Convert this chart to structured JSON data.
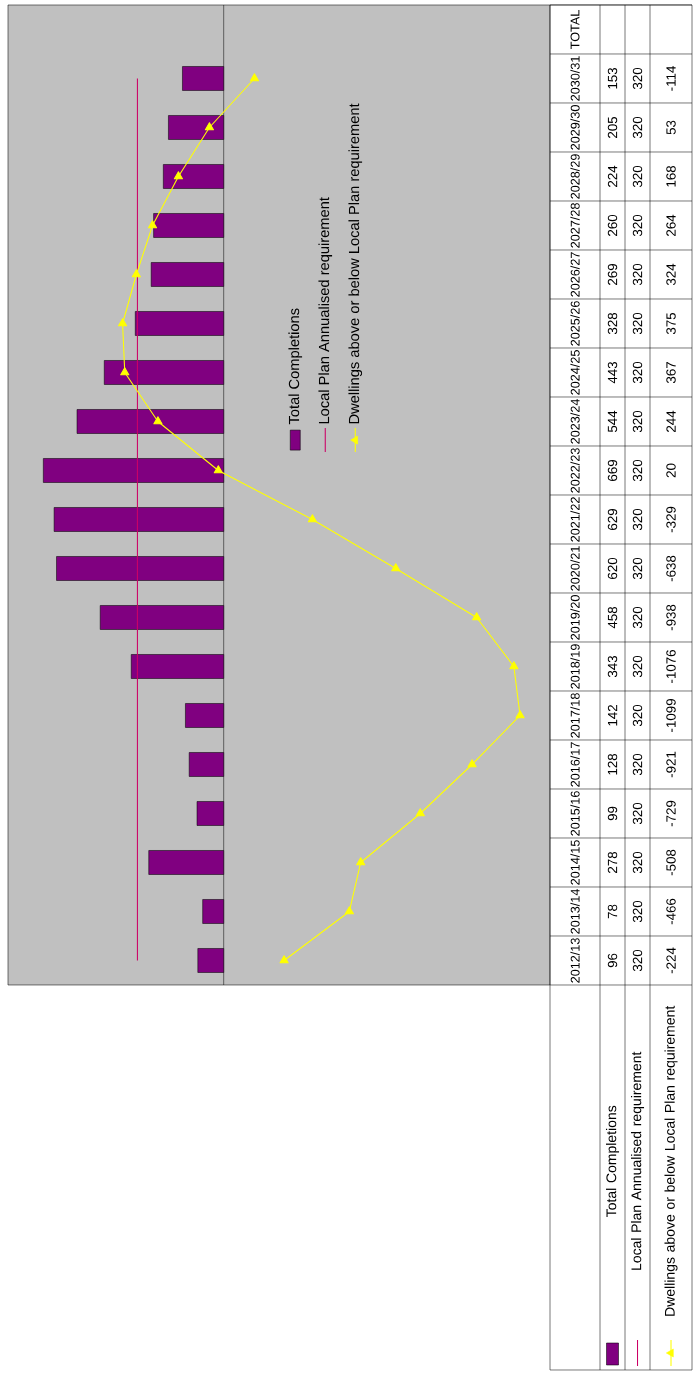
{
  "chart_data": {
    "type": "bar",
    "orientation": "horizontal",
    "categories": [
      "TOTAL",
      "2030/31",
      "2029/30",
      "2028/29",
      "2027/28",
      "2026/27",
      "2025/26",
      "2024/25",
      "2023/24",
      "2022/23",
      "2021/22",
      "2020/21",
      "2019/20",
      "2018/19",
      "2017/18",
      "2016/17",
      "2015/16",
      "2014/15",
      "2013/14",
      "2012/13"
    ],
    "series": [
      {
        "name": "Total Completions",
        "color": "#800080",
        "values": [
          null,
          153,
          205,
          224,
          260,
          269,
          328,
          443,
          544,
          669,
          629,
          620,
          458,
          343,
          142,
          128,
          99,
          278,
          78,
          96
        ]
      },
      {
        "name": "Local Plan Annualised requirement",
        "type": "line",
        "marker": "none",
        "color": "#cc0066",
        "values": [
          null,
          320,
          320,
          320,
          320,
          320,
          320,
          320,
          320,
          320,
          320,
          320,
          320,
          320,
          320,
          320,
          320,
          320,
          320,
          320
        ]
      },
      {
        "name": "Dwellings above or below Local Plan requirement",
        "type": "line",
        "marker": "triangle",
        "color": "#ffff00",
        "values": [
          null,
          -114,
          53,
          168,
          264,
          324,
          375,
          367,
          244,
          20,
          -329,
          -638,
          -938,
          -1076,
          -1099,
          -921,
          -729,
          -508,
          -466,
          -224
        ]
      }
    ],
    "xlim": [
      800,
      -1210
    ],
    "ref_lines": [
      {
        "axis": "x",
        "value": 0,
        "color": "#000000"
      }
    ],
    "tick_labels": "y",
    "data_labels": true,
    "legend": "right",
    "line_style": "solid"
  }
}
